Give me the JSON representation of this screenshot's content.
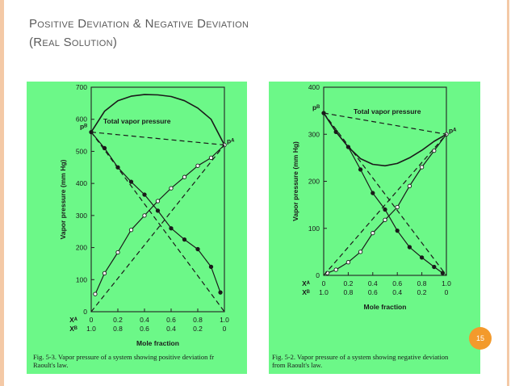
{
  "slide": {
    "title_line1": "Positive Deviation & Negative Deviation",
    "title_line2": "(Real Solution)",
    "page_number": "15",
    "accent_color": "#f4c9a6",
    "badge_color": "#f39a2c",
    "figure_background": "#6cf888"
  },
  "chart_data": [
    {
      "type": "line",
      "title": "Total vapor pressure",
      "xlabel": "Mole fraction",
      "ylabel": "Vapor pressure (mm Hg)",
      "xlim": [
        0,
        1
      ],
      "ylim": [
        0,
        700
      ],
      "yticks": [
        0,
        100,
        200,
        300,
        400,
        500,
        600,
        700
      ],
      "xa_ticks": [
        "0",
        "0.2",
        "0.4",
        "0.6",
        "0.8",
        "1.0"
      ],
      "xb_ticks": [
        "1.0",
        "0.8",
        "0.6",
        "0.4",
        "0.2",
        "0"
      ],
      "xa_label": "X_A",
      "xb_label": "X_B",
      "pb_label": "p_B",
      "pa_label": "p_A",
      "caption_line1": "Fig. 5-3.  Vapor pressure of a system showing positive deviation fr",
      "caption_line2": "Raoult's law.",
      "series": [
        {
          "name": "Total vapor pressure",
          "x": [
            0,
            0.1,
            0.2,
            0.3,
            0.4,
            0.5,
            0.6,
            0.7,
            0.8,
            0.9,
            1.0
          ],
          "y": [
            560,
            625,
            658,
            672,
            677,
            676,
            671,
            658,
            635,
            600,
            520
          ]
        },
        {
          "name": "p_B",
          "x": [
            0,
            0.1,
            0.2,
            0.3,
            0.4,
            0.5,
            0.6,
            0.7,
            0.8,
            0.9,
            0.97
          ],
          "y": [
            560,
            510,
            450,
            405,
            365,
            315,
            260,
            225,
            195,
            140,
            60
          ]
        },
        {
          "name": "p_A",
          "x": [
            0.03,
            0.1,
            0.2,
            0.3,
            0.4,
            0.5,
            0.6,
            0.7,
            0.8,
            0.9,
            1.0
          ],
          "y": [
            55,
            120,
            185,
            255,
            300,
            345,
            385,
            420,
            455,
            480,
            520
          ]
        },
        {
          "name": "ideal p_B",
          "x": [
            0,
            1
          ],
          "y": [
            560,
            0
          ]
        },
        {
          "name": "ideal p_A",
          "x": [
            0,
            1
          ],
          "y": [
            0,
            520
          ]
        },
        {
          "name": "ideal total",
          "x": [
            0,
            1
          ],
          "y": [
            560,
            520
          ]
        }
      ]
    },
    {
      "type": "line",
      "title": "Total vapor pressure",
      "xlabel": "Mole fraction",
      "ylabel": "Vapor pressure (mm Hg)",
      "xlim": [
        0,
        1
      ],
      "ylim": [
        0,
        400
      ],
      "yticks": [
        0,
        100,
        200,
        300,
        400
      ],
      "xa_ticks": [
        "0",
        "0.2",
        "0.4",
        "0.6",
        "0.8",
        "1.0"
      ],
      "xb_ticks": [
        "1.0",
        "0.8",
        "0.6",
        "0.4",
        "0.2",
        "0"
      ],
      "xa_label": "X_A",
      "xb_label": "X_B",
      "pb_label": "p_B",
      "pa_label": "p_A",
      "caption_line1": "Fig. 5-2.  Vapor pressure of a system showing negative deviation",
      "caption_line2": "from Raoult's law.",
      "series": [
        {
          "name": "Total vapor pressure",
          "x": [
            0,
            0.1,
            0.2,
            0.3,
            0.4,
            0.5,
            0.6,
            0.7,
            0.8,
            0.9,
            1.0
          ],
          "y": [
            345,
            305,
            273,
            248,
            236,
            233,
            238,
            250,
            266,
            285,
            300
          ]
        },
        {
          "name": "p_B",
          "x": [
            0,
            0.1,
            0.2,
            0.3,
            0.4,
            0.5,
            0.6,
            0.7,
            0.8,
            0.9,
            0.97
          ],
          "y": [
            345,
            305,
            273,
            225,
            175,
            140,
            95,
            60,
            38,
            18,
            5
          ]
        },
        {
          "name": "p_A",
          "x": [
            0.03,
            0.1,
            0.2,
            0.3,
            0.4,
            0.5,
            0.6,
            0.7,
            0.8,
            0.9,
            1.0
          ],
          "y": [
            5,
            12,
            28,
            50,
            90,
            118,
            145,
            190,
            230,
            265,
            300
          ]
        },
        {
          "name": "ideal p_B",
          "x": [
            0,
            1
          ],
          "y": [
            345,
            0
          ]
        },
        {
          "name": "ideal p_A",
          "x": [
            0,
            1
          ],
          "y": [
            0,
            300
          ]
        },
        {
          "name": "ideal total",
          "x": [
            0,
            1
          ],
          "y": [
            345,
            300
          ]
        }
      ]
    }
  ]
}
